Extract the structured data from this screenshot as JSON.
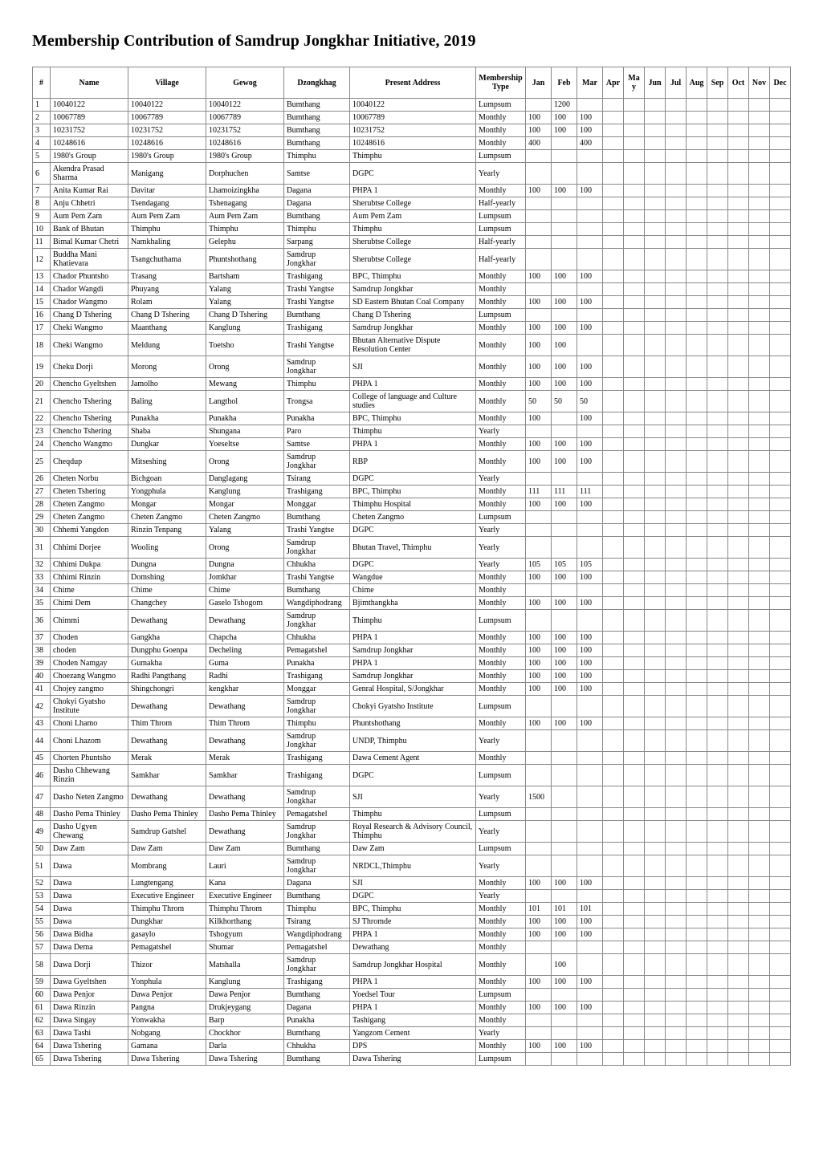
{
  "title": "Membership Contribution of Samdrup Jongkhar Initiative, 2019",
  "headers": [
    "#",
    "Name",
    "Village",
    "Gewog",
    "Dzongkhag",
    "Present Address",
    "Membership Type",
    "Jan",
    "Feb",
    "Mar",
    "Apr",
    "May",
    "Jun",
    "Jul",
    "Aug",
    "Sep",
    "Oct",
    "Nov",
    "Dec"
  ],
  "rows": [
    [
      "1",
      "10040122",
      "10040122",
      "10040122",
      "Bumthang",
      "10040122",
      "Lumpsum",
      "",
      "1200",
      "",
      "",
      "",
      "",
      "",
      "",
      "",
      "",
      "",
      ""
    ],
    [
      "2",
      "10067789",
      "10067789",
      "10067789",
      "Bumthang",
      "10067789",
      "Monthly",
      "100",
      "100",
      "100",
      "",
      "",
      "",
      "",
      "",
      "",
      "",
      "",
      ""
    ],
    [
      "3",
      "10231752",
      "10231752",
      "10231752",
      "Bumthang",
      "10231752",
      "Monthly",
      "100",
      "100",
      "100",
      "",
      "",
      "",
      "",
      "",
      "",
      "",
      "",
      ""
    ],
    [
      "4",
      "10248616",
      "10248616",
      "10248616",
      "Bumthang",
      "10248616",
      "Monthly",
      "400",
      "",
      "400",
      "",
      "",
      "",
      "",
      "",
      "",
      "",
      "",
      ""
    ],
    [
      "5",
      "1980's Group",
      "1980's Group",
      "1980's Group",
      "Thimphu",
      "Thimphu",
      "Lumpsum",
      "",
      "",
      "",
      "",
      "",
      "",
      "",
      "",
      "",
      "",
      "",
      ""
    ],
    [
      "6",
      "Akendra Prasad Sharma",
      "Manigang",
      "Dorphuchen",
      "Samtse",
      "DGPC",
      "Yearly",
      "",
      "",
      "",
      "",
      "",
      "",
      "",
      "",
      "",
      "",
      "",
      ""
    ],
    [
      "7",
      "Anita Kumar Rai",
      "Davitar",
      "Lhamoizingkha",
      "Dagana",
      "PHPA 1",
      "Monthly",
      "100",
      "100",
      "100",
      "",
      "",
      "",
      "",
      "",
      "",
      "",
      "",
      ""
    ],
    [
      "8",
      "Anju Chhetri",
      "Tsendagang",
      "Tshenagang",
      "Dagana",
      "Sherubtse College",
      "Half-yearly",
      "",
      "",
      "",
      "",
      "",
      "",
      "",
      "",
      "",
      "",
      "",
      ""
    ],
    [
      "9",
      "Aum Pem Zam",
      "Aum Pem Zam",
      "Aum Pem Zam",
      "Bumthang",
      "Aum Pem Zam",
      "Lumpsum",
      "",
      "",
      "",
      "",
      "",
      "",
      "",
      "",
      "",
      "",
      "",
      ""
    ],
    [
      "10",
      "Bank of Bhutan",
      "Thimphu",
      "Thimphu",
      "Thimphu",
      "Thimphu",
      "Lumpsum",
      "",
      "",
      "",
      "",
      "",
      "",
      "",
      "",
      "",
      "",
      "",
      ""
    ],
    [
      "11",
      "Bimal Kumar Chetri",
      "Namkhaling",
      "Gelephu",
      "Sarpang",
      "Sherubtse College",
      "Half-yearly",
      "",
      "",
      "",
      "",
      "",
      "",
      "",
      "",
      "",
      "",
      "",
      ""
    ],
    [
      "12",
      "Buddha Mani Khatievara",
      "Tsangchuthama",
      "Phuntshothang",
      "Samdrup Jongkhar",
      "Sherubtse College",
      "Half-yearly",
      "",
      "",
      "",
      "",
      "",
      "",
      "",
      "",
      "",
      "",
      "",
      ""
    ],
    [
      "13",
      "Chador Phuntsho",
      "Trasang",
      "Bartsham",
      "Trashigang",
      "BPC, Thimphu",
      "Monthly",
      "100",
      "100",
      "100",
      "",
      "",
      "",
      "",
      "",
      "",
      "",
      "",
      ""
    ],
    [
      "14",
      "Chador Wangdi",
      "Phuyang",
      "Yalang",
      "Trashi Yangtse",
      "Samdrup Jongkhar",
      "Monthly",
      "",
      "",
      "",
      "",
      "",
      "",
      "",
      "",
      "",
      "",
      "",
      ""
    ],
    [
      "15",
      "Chador Wangmo",
      "Rolam",
      "Yalang",
      "Trashi Yangtse",
      "SD Eastern Bhutan Coal Company",
      "Monthly",
      "100",
      "100",
      "100",
      "",
      "",
      "",
      "",
      "",
      "",
      "",
      "",
      ""
    ],
    [
      "16",
      "Chang D Tshering",
      "Chang D Tshering",
      "Chang D Tshering",
      "Bumthang",
      "Chang D Tshering",
      "Lumpsum",
      "",
      "",
      "",
      "",
      "",
      "",
      "",
      "",
      "",
      "",
      "",
      ""
    ],
    [
      "17",
      "Cheki Wangmo",
      "Maanthang",
      "Kanglung",
      "Trashigang",
      "Samdrup Jongkhar",
      "Monthly",
      "100",
      "100",
      "100",
      "",
      "",
      "",
      "",
      "",
      "",
      "",
      "",
      ""
    ],
    [
      "18",
      "Cheki Wangmo",
      "Meldung",
      "Toetsho",
      "Trashi Yangtse",
      "Bhutan Alternative Dispute Resolution Center",
      "Monthly",
      "100",
      "100",
      "",
      "",
      "",
      "",
      "",
      "",
      "",
      "",
      "",
      ""
    ],
    [
      "19",
      "Cheku Dorji",
      "Morong",
      "Orong",
      "Samdrup Jongkhar",
      "SJI",
      "Monthly",
      "100",
      "100",
      "100",
      "",
      "",
      "",
      "",
      "",
      "",
      "",
      "",
      ""
    ],
    [
      "20",
      "Chencho Gyeltshen",
      "Jamolho",
      "Mewang",
      "Thimphu",
      "PHPA 1",
      "Monthly",
      "100",
      "100",
      "100",
      "",
      "",
      "",
      "",
      "",
      "",
      "",
      "",
      ""
    ],
    [
      "21",
      "Chencho Tshering",
      "Baling",
      "Langthol",
      "Trongsa",
      "College of language and Culture studies",
      "Monthly",
      "50",
      "50",
      "50",
      "",
      "",
      "",
      "",
      "",
      "",
      "",
      "",
      ""
    ],
    [
      "22",
      "Chencho Tshering",
      "Punakha",
      "Punakha",
      "Punakha",
      "BPC, Thimphu",
      "Monthly",
      "100",
      "",
      "100",
      "",
      "",
      "",
      "",
      "",
      "",
      "",
      "",
      ""
    ],
    [
      "23",
      "Chencho Tshering",
      "Shaba",
      "Shungana",
      "Paro",
      "Thimphu",
      "Yearly",
      "",
      "",
      "",
      "",
      "",
      "",
      "",
      "",
      "",
      "",
      "",
      ""
    ],
    [
      "24",
      "Chencho Wangmo",
      "Dungkar",
      "Yoeseltse",
      "Samtse",
      "PHPA 1",
      "Monthly",
      "100",
      "100",
      "100",
      "",
      "",
      "",
      "",
      "",
      "",
      "",
      "",
      ""
    ],
    [
      "25",
      "Cheqdup",
      "Mitseshing",
      "Orong",
      "Samdrup Jongkhar",
      "RBP",
      "Monthly",
      "100",
      "100",
      "100",
      "",
      "",
      "",
      "",
      "",
      "",
      "",
      "",
      ""
    ],
    [
      "26",
      "Cheten Norbu",
      "Bichgoan",
      "Danglagang",
      "Tsirang",
      "DGPC",
      "Yearly",
      "",
      "",
      "",
      "",
      "",
      "",
      "",
      "",
      "",
      "",
      "",
      ""
    ],
    [
      "27",
      "Cheten Tshering",
      "Yongphula",
      "Kanglung",
      "Trashigang",
      "BPC, Thimphu",
      "Monthly",
      "111",
      "111",
      "111",
      "",
      "",
      "",
      "",
      "",
      "",
      "",
      "",
      ""
    ],
    [
      "28",
      "Cheten Zangmo",
      "Mongar",
      "Mongar",
      "Monggar",
      "Thimphu Hospital",
      "Monthly",
      "100",
      "100",
      "100",
      "",
      "",
      "",
      "",
      "",
      "",
      "",
      "",
      ""
    ],
    [
      "29",
      "Cheten Zangmo",
      "Cheten Zangmo",
      "Cheten Zangmo",
      "Bumthang",
      "Cheten Zangmo",
      "Lumpsum",
      "",
      "",
      "",
      "",
      "",
      "",
      "",
      "",
      "",
      "",
      "",
      ""
    ],
    [
      "30",
      "Chhemi Yangdon",
      "Rinzin Tenpang",
      "Yalang",
      "Trashi Yangtse",
      "DGPC",
      "Yearly",
      "",
      "",
      "",
      "",
      "",
      "",
      "",
      "",
      "",
      "",
      "",
      ""
    ],
    [
      "31",
      "Chhimi Dorjee",
      "Wooling",
      "Orong",
      "Samdrup Jongkhar",
      "Bhutan Travel, Thimphu",
      "Yearly",
      "",
      "",
      "",
      "",
      "",
      "",
      "",
      "",
      "",
      "",
      "",
      ""
    ],
    [
      "32",
      "Chhimi Dukpa",
      "Dungna",
      "Dungna",
      "Chhukha",
      "DGPC",
      "Yearly",
      "105",
      "105",
      "105",
      "",
      "",
      "",
      "",
      "",
      "",
      "",
      "",
      ""
    ],
    [
      "33",
      "Chhimi Rinzin",
      "Domshing",
      "Jomkhar",
      "Trashi Yangtse",
      "Wangdue",
      "Monthly",
      "100",
      "100",
      "100",
      "",
      "",
      "",
      "",
      "",
      "",
      "",
      "",
      ""
    ],
    [
      "34",
      "Chime",
      "Chime",
      "Chime",
      "Bumthang",
      "Chime",
      "Monthly",
      "",
      "",
      "",
      "",
      "",
      "",
      "",
      "",
      "",
      "",
      "",
      ""
    ],
    [
      "35",
      "Chimi Dem",
      "Changchey",
      "Gaselo Tshogom",
      "Wangdiphodrang",
      "Bjimthangkha",
      "Monthly",
      "100",
      "100",
      "100",
      "",
      "",
      "",
      "",
      "",
      "",
      "",
      "",
      ""
    ],
    [
      "36",
      "Chimmi",
      "Dewathang",
      "Dewathang",
      "Samdrup Jongkhar",
      "Thimphu",
      "Lumpsum",
      "",
      "",
      "",
      "",
      "",
      "",
      "",
      "",
      "",
      "",
      "",
      ""
    ],
    [
      "37",
      "Choden",
      "Gangkha",
      "Chapcha",
      "Chhukha",
      "PHPA 1",
      "Monthly",
      "100",
      "100",
      "100",
      "",
      "",
      "",
      "",
      "",
      "",
      "",
      "",
      ""
    ],
    [
      "38",
      "choden",
      "Dungphu Goenpa",
      "Decheling",
      "Pemagatshel",
      "Samdrup Jongkhar",
      "Monthly",
      "100",
      "100",
      "100",
      "",
      "",
      "",
      "",
      "",
      "",
      "",
      "",
      ""
    ],
    [
      "39",
      "Choden Namgay",
      "Gumakha",
      "Guma",
      "Punakha",
      "PHPA 1",
      "Monthly",
      "100",
      "100",
      "100",
      "",
      "",
      "",
      "",
      "",
      "",
      "",
      "",
      ""
    ],
    [
      "40",
      "Choezang Wangmo",
      "Radhi Pangthang",
      "Radhi",
      "Trashigang",
      "Samdrup Jongkhar",
      "Monthly",
      "100",
      "100",
      "100",
      "",
      "",
      "",
      "",
      "",
      "",
      "",
      "",
      ""
    ],
    [
      "41",
      "Chojey zangmo",
      "Shingchongri",
      "kengkhar",
      "Monggar",
      "Genral Hospital, S/Jongkhar",
      "Monthly",
      "100",
      "100",
      "100",
      "",
      "",
      "",
      "",
      "",
      "",
      "",
      "",
      ""
    ],
    [
      "42",
      "Chokyi Gyatsho Institute",
      "Dewathang",
      "Dewathang",
      "Samdrup Jongkhar",
      "Chokyi Gyatsho Institute",
      "Lumpsum",
      "",
      "",
      "",
      "",
      "",
      "",
      "",
      "",
      "",
      "",
      "",
      ""
    ],
    [
      "43",
      "Choni Lhamo",
      "Thim Throm",
      "Thim Throm",
      "Thimphu",
      "Phuntshothang",
      "Monthly",
      "100",
      "100",
      "100",
      "",
      "",
      "",
      "",
      "",
      "",
      "",
      "",
      ""
    ],
    [
      "44",
      "Choni Lhazom",
      "Dewathang",
      "Dewathang",
      "Samdrup Jongkhar",
      "UNDP, Thimphu",
      "Yearly",
      "",
      "",
      "",
      "",
      "",
      "",
      "",
      "",
      "",
      "",
      "",
      ""
    ],
    [
      "45",
      "Chorten Phuntsho",
      "Merak",
      "Merak",
      "Trashigang",
      "Dawa Cement Agent",
      "Monthly",
      "",
      "",
      "",
      "",
      "",
      "",
      "",
      "",
      "",
      "",
      "",
      ""
    ],
    [
      "46",
      "Dasho Chhewang Rinzin",
      "Samkhar",
      "Samkhar",
      "Trashigang",
      "DGPC",
      "Lumpsum",
      "",
      "",
      "",
      "",
      "",
      "",
      "",
      "",
      "",
      "",
      "",
      ""
    ],
    [
      "47",
      "Dasho Neten Zangmo",
      "Dewathang",
      "Dewathang",
      "Samdrup Jongkhar",
      "SJI",
      "Yearly",
      "1500",
      "",
      "",
      "",
      "",
      "",
      "",
      "",
      "",
      "",
      "",
      ""
    ],
    [
      "48",
      "Dasho Pema Thinley",
      "Dasho Pema Thinley",
      "Dasho Pema Thinley",
      "Pemagatshel",
      "Thimphu",
      "Lumpsum",
      "",
      "",
      "",
      "",
      "",
      "",
      "",
      "",
      "",
      "",
      "",
      ""
    ],
    [
      "49",
      "Dasho Ugyen Chewang",
      "Samdrup Gatshel",
      "Dewathang",
      "Samdrup Jongkhar",
      "Royal Research & Advisory Council, Thimphu",
      "Yearly",
      "",
      "",
      "",
      "",
      "",
      "",
      "",
      "",
      "",
      "",
      "",
      ""
    ],
    [
      "50",
      "Daw Zam",
      "Daw Zam",
      "Daw Zam",
      "Bumthang",
      "Daw Zam",
      "Lumpsum",
      "",
      "",
      "",
      "",
      "",
      "",
      "",
      "",
      "",
      "",
      "",
      ""
    ],
    [
      "51",
      "Dawa",
      "Mombrang",
      "Lauri",
      "Samdrup Jongkhar",
      "NRDCL,Thimphu",
      "Yearly",
      "",
      "",
      "",
      "",
      "",
      "",
      "",
      "",
      "",
      "",
      "",
      ""
    ],
    [
      "52",
      "Dawa",
      "Lungtengang",
      "Kana",
      "Dagana",
      "SJI",
      "Monthly",
      "100",
      "100",
      "100",
      "",
      "",
      "",
      "",
      "",
      "",
      "",
      "",
      ""
    ],
    [
      "53",
      "Dawa",
      "Executive Engineer",
      "Executive Engineer",
      "Bumthang",
      "DGPC",
      "Yearly",
      "",
      "",
      "",
      "",
      "",
      "",
      "",
      "",
      "",
      "",
      "",
      ""
    ],
    [
      "54",
      "Dawa",
      "Thimphu Throm",
      "Thimphu Throm",
      "Thimphu",
      "BPC, Thimphu",
      "Monthly",
      "101",
      "101",
      "101",
      "",
      "",
      "",
      "",
      "",
      "",
      "",
      "",
      ""
    ],
    [
      "55",
      "Dawa",
      "Dungkhar",
      "Kilkhorthang",
      "Tsirang",
      "SJ Thromde",
      "Monthly",
      "100",
      "100",
      "100",
      "",
      "",
      "",
      "",
      "",
      "",
      "",
      "",
      ""
    ],
    [
      "56",
      "Dawa Bidha",
      "gasaylo",
      "Tshogyum",
      "Wangdiphodrang",
      "PHPA 1",
      "Monthly",
      "100",
      "100",
      "100",
      "",
      "",
      "",
      "",
      "",
      "",
      "",
      "",
      ""
    ],
    [
      "57",
      "Dawa Dema",
      "Pemagatshel",
      "Shumar",
      "Pemagatshel",
      "Dewathang",
      "Monthly",
      "",
      "",
      "",
      "",
      "",
      "",
      "",
      "",
      "",
      "",
      "",
      ""
    ],
    [
      "58",
      "Dawa Dorji",
      "Thizor",
      "Matshalla",
      "Samdrup Jongkhar",
      "Samdrup Jongkhar Hospital",
      "Monthly",
      "",
      "100",
      "",
      "",
      "",
      "",
      "",
      "",
      "",
      "",
      "",
      ""
    ],
    [
      "59",
      "Dawa Gyeltshen",
      "Yonphula",
      "Kanglung",
      "Trashigang",
      "PHPA 1",
      "Monthly",
      "100",
      "100",
      "100",
      "",
      "",
      "",
      "",
      "",
      "",
      "",
      "",
      ""
    ],
    [
      "60",
      "Dawa Penjor",
      "Dawa Penjor",
      "Dawa Penjor",
      "Bumthang",
      "Yoedsel Tour",
      "Lumpsum",
      "",
      "",
      "",
      "",
      "",
      "",
      "",
      "",
      "",
      "",
      "",
      ""
    ],
    [
      "61",
      "Dawa Rinzin",
      "Pangna",
      "Drukjeygang",
      "Dagana",
      "PHPA 1",
      "Monthly",
      "100",
      "100",
      "100",
      "",
      "",
      "",
      "",
      "",
      "",
      "",
      "",
      ""
    ],
    [
      "62",
      "Dawa Singay",
      "Yonwakha",
      "Barp",
      "Punakha",
      "Tashigang",
      "Monthly",
      "",
      "",
      "",
      "",
      "",
      "",
      "",
      "",
      "",
      "",
      "",
      ""
    ],
    [
      "63",
      "Dawa Tashi",
      "Nobgang",
      "Chockhor",
      "Bumthang",
      "Yangzom Cement",
      "Yearly",
      "",
      "",
      "",
      "",
      "",
      "",
      "",
      "",
      "",
      "",
      "",
      ""
    ],
    [
      "64",
      "Dawa Tshering",
      "Gamana",
      "Darla",
      "Chhukha",
      "DPS",
      "Monthly",
      "100",
      "100",
      "100",
      "",
      "",
      "",
      "",
      "",
      "",
      "",
      "",
      ""
    ],
    [
      "65",
      "Dawa Tshering",
      "Dawa Tshering",
      "Dawa Tshering",
      "Bumthang",
      "Dawa Tshering",
      "Lumpsum",
      "",
      "",
      "",
      "",
      "",
      "",
      "",
      "",
      "",
      "",
      "",
      ""
    ]
  ],
  "colClasses": [
    "col-idx",
    "col-name",
    "col-village",
    "col-gewog",
    "col-dz",
    "col-addr",
    "col-type",
    "col-month",
    "col-month",
    "col-month",
    "col-narrow",
    "col-narrow",
    "col-narrow",
    "col-narrow",
    "col-narrow",
    "col-narrow",
    "col-narrow",
    "col-narrow",
    "col-narrow"
  ]
}
